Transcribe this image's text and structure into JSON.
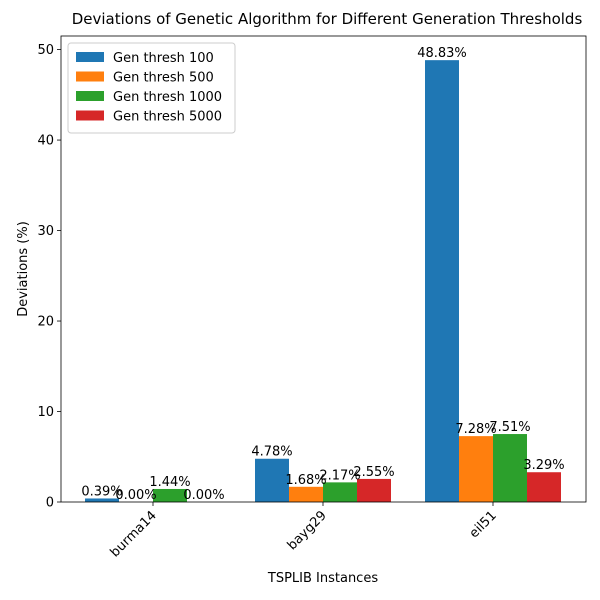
{
  "chart_data": {
    "type": "bar",
    "title": "Deviations of Genetic Algorithm for Different Generation Thresholds",
    "xlabel": "TSPLIB Instances",
    "ylabel": "Deviations (%)",
    "categories": [
      "burma14",
      "bayg29",
      "eil51"
    ],
    "series": [
      {
        "name": "Gen thresh 100",
        "color": "#1f77b4",
        "values": [
          0.39,
          4.78,
          48.83
        ],
        "labels": [
          "0.39%",
          "4.78%",
          "48.83%"
        ]
      },
      {
        "name": "Gen thresh 500",
        "color": "#ff7f0e",
        "values": [
          0.0,
          1.68,
          7.28
        ],
        "labels": [
          "0.00%",
          "1.68%",
          "7.28%"
        ]
      },
      {
        "name": "Gen thresh 1000",
        "color": "#2ca02c",
        "values": [
          1.44,
          2.17,
          7.51
        ],
        "labels": [
          "1.44%",
          "2.17%",
          "7.51%"
        ]
      },
      {
        "name": "Gen thresh 5000",
        "color": "#d62728",
        "values": [
          0.0,
          2.55,
          3.29
        ],
        "labels": [
          "0.00%",
          "2.55%",
          "3.29%"
        ]
      }
    ],
    "ylim": [
      0,
      51.5
    ],
    "yticks": [
      0,
      10,
      20,
      30,
      40,
      50
    ],
    "grid": false,
    "legend": "top-left"
  }
}
